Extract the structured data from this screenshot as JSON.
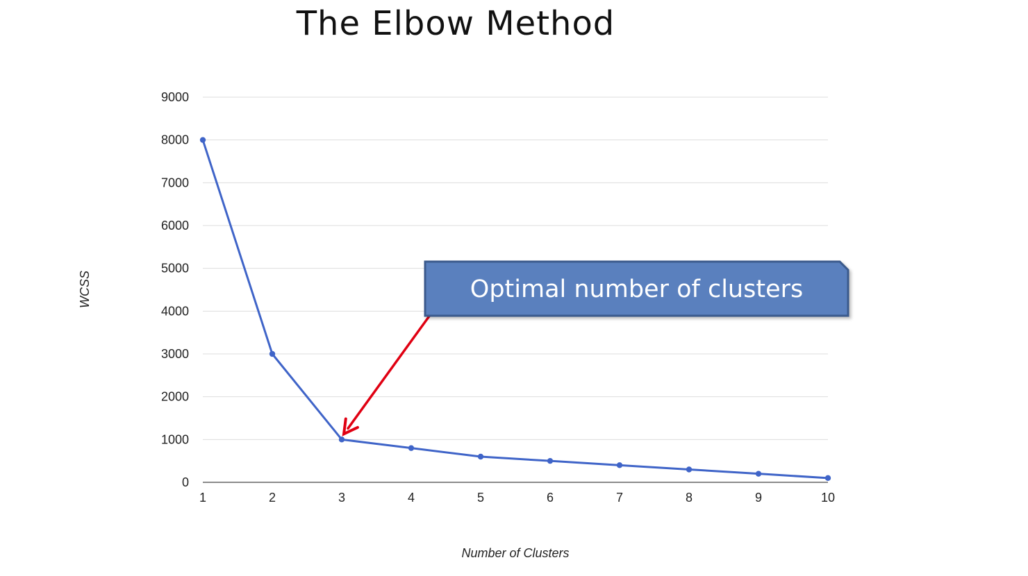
{
  "title": "The Elbow Method",
  "chart_data": {
    "type": "line",
    "title": "The Elbow Method",
    "xlabel": "Number of Clusters",
    "ylabel": "WCSS",
    "x": [
      1,
      2,
      3,
      4,
      5,
      6,
      7,
      8,
      9,
      10
    ],
    "x_ticks": [
      "1",
      "2",
      "3",
      "4",
      "5",
      "6",
      "7",
      "8",
      "9",
      "10"
    ],
    "series": [
      {
        "values": [
          8000,
          3000,
          1000,
          800,
          600,
          500,
          400,
          300,
          200,
          100
        ]
      }
    ],
    "y_ticks": [
      0,
      1000,
      2000,
      3000,
      4000,
      5000,
      6000,
      7000,
      8000,
      9000
    ],
    "ylim": [
      0,
      9000
    ],
    "xlim": [
      1,
      10
    ],
    "grid": true,
    "legend": "none",
    "colors": {
      "line": "#3f64c8",
      "grid": "#dddddd",
      "axis": "#444444",
      "callout_fill": "#5a80be",
      "callout_border": "#3a5a8c",
      "arrow": "#e00012"
    },
    "annotations": [
      {
        "text": "Optimal number of clusters",
        "x": 3,
        "y": 1000
      }
    ]
  }
}
